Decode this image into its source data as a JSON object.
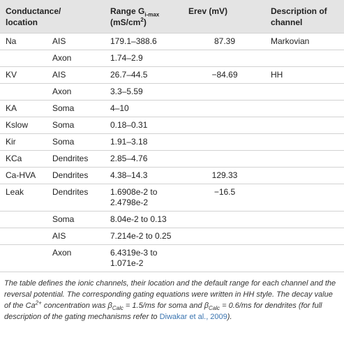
{
  "table": {
    "header": {
      "conductance": "Conductance/ location",
      "range": {
        "text": "Range G",
        "sub": "i-max",
        "unit": "(mS/cm",
        "sup": "2",
        "close": ")"
      },
      "erev": "Erev (mV)",
      "description": "Description of channel"
    },
    "rows": [
      {
        "name": "Na",
        "location": "AIS",
        "range": "179.1–388.6",
        "erev": "87.39",
        "description": "Markovian"
      },
      {
        "location": "Axon",
        "range": "1.74–2.9"
      },
      {
        "name": "KV",
        "location": "AIS",
        "range": "26.7–44.5",
        "erev": "−84.69",
        "description": "HH"
      },
      {
        "location": "Axon",
        "range": "3.3–5.59"
      },
      {
        "name": "KA",
        "location": "Soma",
        "range": "4–10"
      },
      {
        "name": "Kslow",
        "location": "Soma",
        "range": "0.18–0.31"
      },
      {
        "name": "Kir",
        "location": "Soma",
        "range": "1.91–3.18"
      },
      {
        "name": "KCa",
        "location": "Dendrites",
        "range": "2.85–4.76"
      },
      {
        "name": "Ca-HVA",
        "location": "Dendrites",
        "range": "4.38–14.3",
        "erev": "129.33"
      },
      {
        "name": "Leak",
        "location": "Dendrites",
        "range": "1.6908e-2 to 2.4798e-2",
        "erev": "−16.5"
      },
      {
        "location": "Soma",
        "range": "8.04e-2 to 0.13"
      },
      {
        "location": "AIS",
        "range": "7.214e-2 to 0.25"
      },
      {
        "location": "Axon",
        "range": "6.4319e-3 to 1.071e-2"
      }
    ]
  },
  "footnote": {
    "text1": "The table defines the ionic channels, their location and the default range for each channel and the reversal potential. The corresponding gating equations were written in HH style. The decay value of the Ca",
    "sup": "2+",
    "text2": " concentration was ",
    "beta": "β",
    "sub": "Calc",
    "text3": " = 1.5/ms for soma and ",
    "text4": " = 0.6/ms for dendrites (for full description of the gating mechanisms refer to ",
    "link": "Diwakar et al., 2009",
    "text5": ")."
  }
}
